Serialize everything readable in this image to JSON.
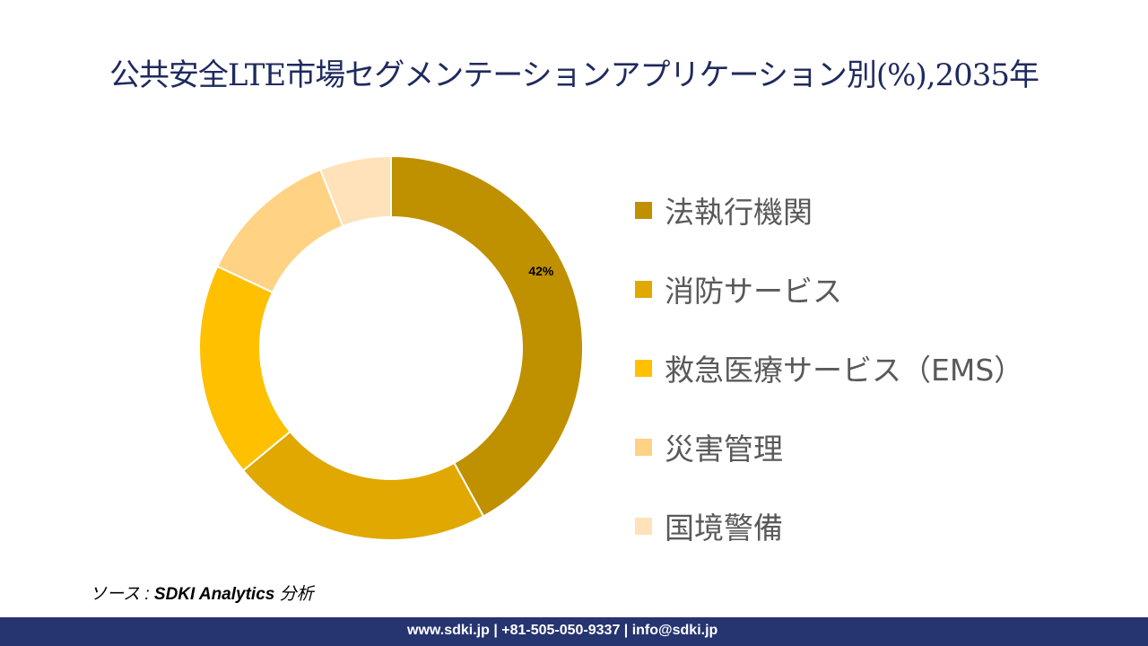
{
  "title": "公共安全LTE市場セグメンテーションアプリケーション別(%),2035年",
  "chart_data": {
    "type": "pie",
    "donut": true,
    "categories": [
      "法執行機関",
      "消防サービス",
      "救急医療サービス（EMS）",
      "災害管理",
      "国境警備"
    ],
    "values": [
      42,
      22,
      18,
      12,
      6
    ],
    "colors": [
      "#BF9000",
      "#E0A800",
      "#FFC000",
      "#FFD284",
      "#FFE1BA"
    ],
    "data_labels": [
      "42%",
      "",
      "",
      "",
      ""
    ],
    "legend_position": "right"
  },
  "source": {
    "prefix": "ソース : ",
    "brand": "SDKI Analytics",
    "suffix": " 分析"
  },
  "footer": {
    "text": "www.sdki.jp | +81-505-050-9337 | info@sdki.jp",
    "color": "#263470"
  }
}
